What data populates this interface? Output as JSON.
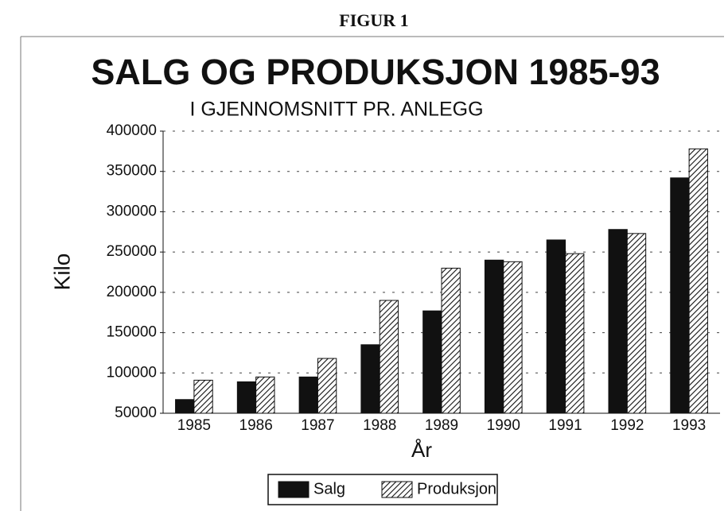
{
  "header": "FIGUR 1",
  "chart_data": {
    "type": "bar",
    "title": "SALG OG PRODUKSJON 1985-93",
    "subtitle": "I GJENNOMSNITT PR. ANLEGG",
    "xlabel": "År",
    "ylabel": "Kilo",
    "categories": [
      "1985",
      "1986",
      "1987",
      "1988",
      "1989",
      "1990",
      "1991",
      "1992",
      "1993"
    ],
    "series": [
      {
        "name": "Salg",
        "color": "#111111",
        "hatch": false,
        "values": [
          67000,
          89000,
          95000,
          135000,
          177000,
          240000,
          265000,
          278000,
          342000
        ]
      },
      {
        "name": "Produksjon",
        "color": "#111111",
        "hatch": true,
        "values": [
          91000,
          95000,
          118000,
          190000,
          230000,
          238000,
          248000,
          273000,
          378000
        ]
      }
    ],
    "ylim": [
      50000,
      400000
    ],
    "yticks": [
      50000,
      100000,
      150000,
      200000,
      250000,
      300000,
      350000,
      400000
    ],
    "grid": true,
    "legend": "bottom"
  }
}
